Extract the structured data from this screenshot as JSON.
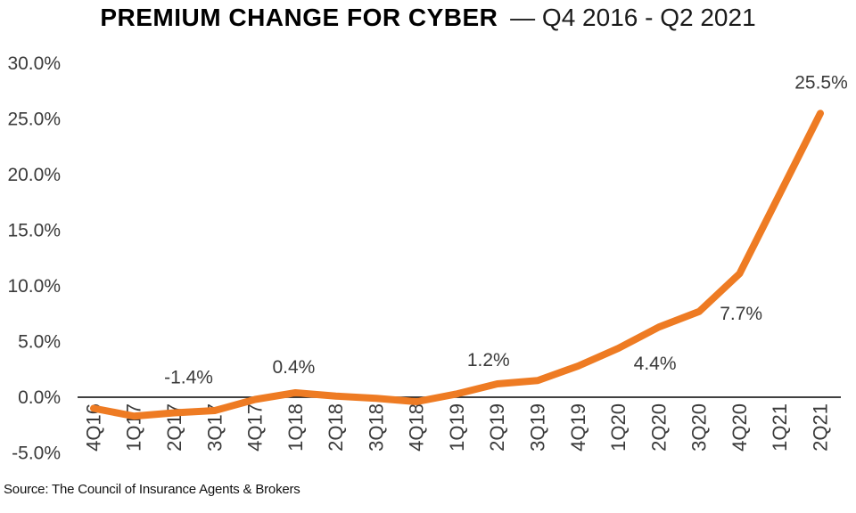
{
  "header": {
    "title_bold": "PREMIUM CHANGE FOR CYBER",
    "title_rest": "— Q4 2016 - Q2 2021"
  },
  "footer": {
    "source": "Source: The Council of Insurance Agents & Brokers"
  },
  "chart_data": {
    "type": "line",
    "title": "PREMIUM CHANGE FOR CYBER — Q4 2016 - Q2 2021",
    "categories": [
      "4Q16",
      "1Q17",
      "2Q17",
      "3Q17",
      "4Q17",
      "1Q18",
      "2Q18",
      "3Q18",
      "4Q18",
      "1Q19",
      "2Q19",
      "3Q19",
      "4Q19",
      "1Q20",
      "2Q20",
      "3Q20",
      "4Q20",
      "1Q21",
      "2Q21"
    ],
    "series": [
      {
        "name": "Premium change for cyber",
        "values": [
          -1.0,
          -1.7,
          -1.4,
          -1.2,
          -0.2,
          0.4,
          0.1,
          -0.1,
          -0.4,
          0.3,
          1.2,
          1.5,
          2.8,
          4.4,
          6.3,
          7.7,
          11.1,
          18.3,
          25.5
        ]
      }
    ],
    "data_labels": [
      {
        "category": "2Q17",
        "text": "-1.4%"
      },
      {
        "category": "1Q18",
        "text": "0.4%"
      },
      {
        "category": "2Q19",
        "text": "1.2%"
      },
      {
        "category": "1Q20",
        "text": "4.4%"
      },
      {
        "category": "3Q20",
        "text": "7.7%"
      },
      {
        "category": "2Q21",
        "text": "25.5%"
      }
    ],
    "y_tick_labels": [
      "30.0%",
      "25.0%",
      "20.0%",
      "15.0%",
      "10.0%",
      "5.0%",
      "0.0%",
      "-5.0%"
    ],
    "y_tick_values": [
      30,
      25,
      20,
      15,
      10,
      5,
      0,
      -5
    ],
    "ylim": [
      -5,
      30
    ],
    "ylabel": "",
    "xlabel": "",
    "grid": false,
    "legend": false,
    "line_color": "#ee7b23",
    "axis_color": "#000000",
    "tick_text_color": "#3a3a3a",
    "label_text_color": "#3a3a3a"
  }
}
